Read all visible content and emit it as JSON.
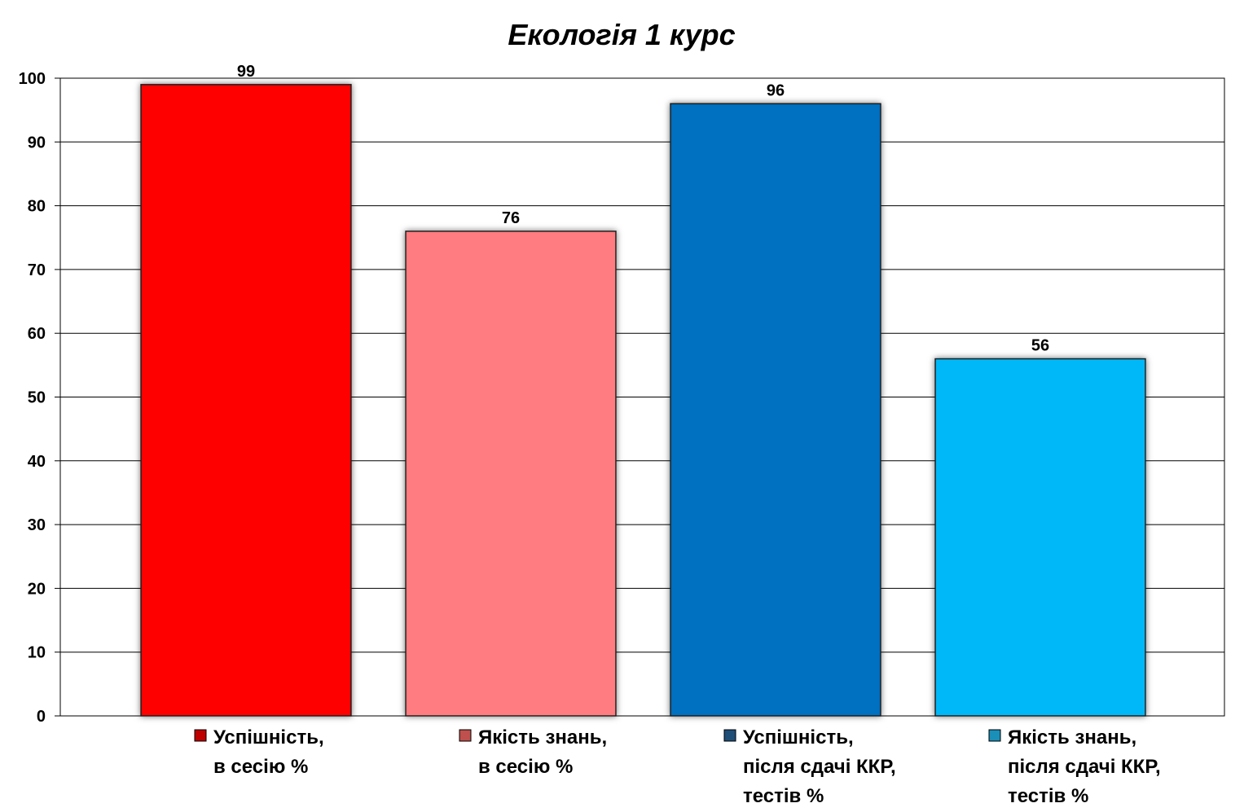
{
  "chart_data": {
    "type": "bar",
    "title": "Екологія 1 курс",
    "xlabel": "",
    "ylabel": "",
    "ylim": [
      0,
      100
    ],
    "yticks": [
      0,
      10,
      20,
      30,
      40,
      50,
      60,
      70,
      80,
      90,
      100
    ],
    "grid": true,
    "legend_position": "bottom",
    "categories": [
      [
        "Успішність,",
        "в сесію %"
      ],
      [
        "Якість знань,",
        "в сесію %"
      ],
      [
        "Успішність,",
        "після сдачі ККР,",
        "тестів %"
      ],
      [
        "Якість знань,",
        "після сдачі ККР,",
        "тестів %"
      ]
    ],
    "values": [
      99,
      76,
      96,
      56
    ],
    "colors": [
      "#ff0000",
      "#ff7c80",
      "#0070c0",
      "#00b8f8"
    ],
    "legend_marker_colors": [
      "#c00000",
      "#c0504d",
      "#1f4e79",
      "#1a8fb8"
    ]
  }
}
